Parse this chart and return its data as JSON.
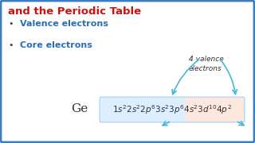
{
  "bg_color": "#ffffff",
  "border_color": "#3a7cc7",
  "title_text": "and the Periodic Table",
  "title_color": "#cc1111",
  "bullet1_text": "Valence electrons",
  "bullet2_text": "Core electrons",
  "bullet_color": "#2a6db5",
  "ge_label": "Ge",
  "ge_color": "#333333",
  "config_mathtext": "$1s^{2}2s^{2}2p^{6}3s^{2}3p^{6}4s^{2}3d^{10}4p^{2}$",
  "valence_line1": "4 valence",
  "valence_line2": "electrons",
  "valence_color": "#333333",
  "box_bg": "#ddeeff",
  "box_bg2": "#fde8e0",
  "box_border": "#88bbe8",
  "arrow_color": "#44b8d8",
  "figw": 3.2,
  "figh": 1.8,
  "dpi": 100
}
